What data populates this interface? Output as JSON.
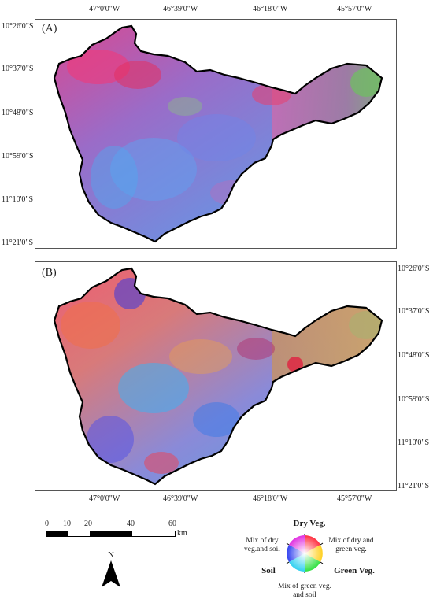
{
  "top_longitude_labels": [
    "47°0'0\"W",
    "46°39'0\"W",
    "46°18'0\"W",
    "45°57'0\"W"
  ],
  "bottom_longitude_labels": [
    "47°0'0\"W",
    "46°39'0\"W",
    "46°18'0\"W",
    "45°57'0\"W"
  ],
  "left_latitude_labels": [
    "10°26'0\"S",
    "10°37'0\"S",
    "10°48'0\"S",
    "10°59'0\"S",
    "11°10'0\"S",
    "11°21'0\"S"
  ],
  "right_latitude_labels": [
    "10°26'0\"S",
    "10°37'0\"S",
    "10°48'0\"S",
    "10°59'0\"S",
    "11°10'0\"S",
    "11°21'0\"S"
  ],
  "panels": [
    {
      "letter": "(A)"
    },
    {
      "letter": "(B)"
    }
  ],
  "scale_bar": {
    "ticks": [
      "0",
      "10",
      "20",
      "40",
      "60"
    ],
    "unit": "km"
  },
  "north_arrow": {
    "label": "N"
  },
  "legend": {
    "top": "Dry Veg.",
    "upper_left": "Mix of dry veg.and soil",
    "upper_right": "Mix of dry and green veg.",
    "left": "Soil",
    "right": "Green Veg.",
    "bottom": "Mix of green veg. and soil"
  }
}
